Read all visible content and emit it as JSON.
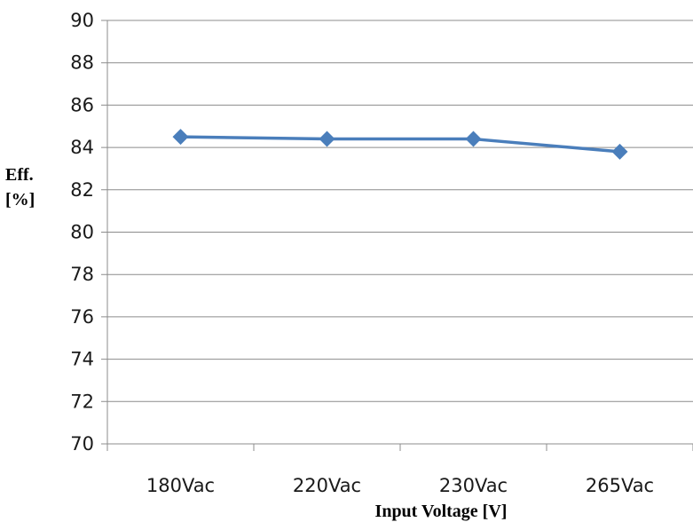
{
  "chart_data": {
    "type": "line",
    "categories": [
      "180Vac",
      "220Vac",
      "230Vac",
      "265Vac"
    ],
    "series": [
      {
        "values": [
          84.5,
          84.4,
          84.4,
          83.8
        ]
      }
    ],
    "ylim": [
      70,
      90
    ],
    "yticks": [
      70,
      72,
      74,
      76,
      78,
      80,
      82,
      84,
      86,
      88,
      90
    ],
    "xlabel": "Input Voltage [V]",
    "ylabel_line1": "Eff.",
    "ylabel_line2": "[%]",
    "grid": true,
    "legend": "none",
    "colors": {
      "series": "#4a7ebb",
      "grid": "#8c8c8c",
      "text": "#1a1a1a"
    },
    "marker": "diamond"
  }
}
